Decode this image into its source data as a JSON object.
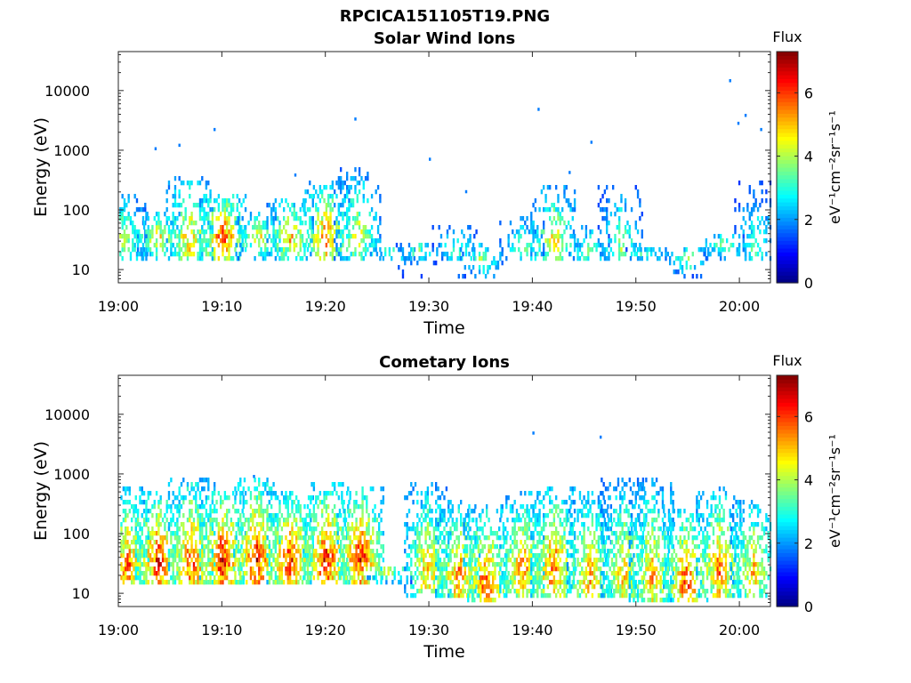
{
  "figure": {
    "title": "RPCICA151105T19.PNG"
  },
  "colors": {
    "colormap": [
      "#00007f",
      "#0000ff",
      "#007fff",
      "#00ffff",
      "#7fff7f",
      "#ffff00",
      "#ff7f00",
      "#ff0000",
      "#7f0000"
    ]
  },
  "chart_data": [
    {
      "type": "heatmap",
      "title": "Solar Wind Ions",
      "xlabel": "Time",
      "ylabel": "Energy (eV)",
      "x_ticks": [
        "19:00",
        "19:10",
        "19:20",
        "19:30",
        "19:40",
        "19:50",
        "20:00"
      ],
      "y_ticks": [
        "10",
        "100",
        "1000",
        "10000"
      ],
      "y_scale": "log",
      "xlim": [
        "19:00",
        "20:03"
      ],
      "ylim": [
        6,
        45000
      ],
      "colorbar": {
        "title": "Flux",
        "label": "eV⁻¹cm⁻²sr⁻¹s⁻¹",
        "ticks": [
          "0",
          "2",
          "4",
          "6"
        ],
        "range": [
          0,
          7.3
        ]
      },
      "bursts": [
        {
          "t": 0.5,
          "lo": 15,
          "hi": 200,
          "peak": 4.5,
          "core": 35,
          "density": 0.7
        },
        {
          "t": 3.8,
          "lo": 15,
          "hi": 90,
          "peak": 5.2,
          "core": 35,
          "density": 0.6
        },
        {
          "t": 6.8,
          "lo": 15,
          "hi": 400,
          "peak": 5.5,
          "core": 35,
          "density": 0.55
        },
        {
          "t": 10.0,
          "lo": 15,
          "hi": 200,
          "peak": 6.5,
          "core": 35,
          "density": 0.7
        },
        {
          "t": 13.5,
          "lo": 15,
          "hi": 90,
          "peak": 5.0,
          "core": 35,
          "density": 0.6
        },
        {
          "t": 16.5,
          "lo": 15,
          "hi": 150,
          "peak": 5.5,
          "core": 35,
          "density": 0.65
        },
        {
          "t": 20.0,
          "lo": 15,
          "hi": 300,
          "peak": 6.0,
          "core": 35,
          "density": 0.65
        },
        {
          "t": 23.0,
          "lo": 15,
          "hi": 500,
          "peak": 4.8,
          "core": 40,
          "density": 0.55
        },
        {
          "t": 26.5,
          "lo": 15,
          "hi": 25,
          "peak": 4.0,
          "core": 20,
          "density": 0.35
        },
        {
          "t": 29.0,
          "lo": 7,
          "hi": 30,
          "peak": 4.0,
          "core": 20,
          "density": 0.4
        },
        {
          "t": 32.5,
          "lo": 15,
          "hi": 60,
          "peak": 3.8,
          "core": 20,
          "density": 0.35
        },
        {
          "t": 35.0,
          "lo": 7,
          "hi": 30,
          "peak": 4.2,
          "core": 15,
          "density": 0.4
        },
        {
          "t": 39.0,
          "lo": 15,
          "hi": 80,
          "peak": 4.0,
          "core": 25,
          "density": 0.4
        },
        {
          "t": 42.0,
          "lo": 15,
          "hi": 250,
          "peak": 5.2,
          "core": 30,
          "density": 0.55
        },
        {
          "t": 45.5,
          "lo": 15,
          "hi": 60,
          "peak": 4.0,
          "core": 20,
          "density": 0.4
        },
        {
          "t": 48.5,
          "lo": 15,
          "hi": 250,
          "peak": 4.2,
          "core": 25,
          "density": 0.45
        },
        {
          "t": 51.0,
          "lo": 15,
          "hi": 25,
          "peak": 3.8,
          "core": 18,
          "density": 0.35
        },
        {
          "t": 55.0,
          "lo": 7,
          "hi": 25,
          "peak": 4.2,
          "core": 15,
          "density": 0.4
        },
        {
          "t": 58.5,
          "lo": 15,
          "hi": 40,
          "peak": 4.2,
          "core": 25,
          "density": 0.5
        },
        {
          "t": 61.5,
          "lo": 15,
          "hi": 300,
          "peak": 3.8,
          "core": 20,
          "density": 0.4
        }
      ],
      "specks": [
        {
          "t": 3.5,
          "e": 1050
        },
        {
          "t": 5.8,
          "e": 1200
        },
        {
          "t": 9.2,
          "e": 2200
        },
        {
          "t": 22.8,
          "e": 3300
        },
        {
          "t": 30.0,
          "e": 700
        },
        {
          "t": 40.5,
          "e": 4800
        },
        {
          "t": 45.6,
          "e": 1350
        },
        {
          "t": 59.0,
          "e": 14500
        },
        {
          "t": 60.5,
          "e": 3800
        },
        {
          "t": 62.0,
          "e": 2200
        },
        {
          "t": 59.8,
          "e": 2800
        },
        {
          "t": 33.5,
          "e": 200
        },
        {
          "t": 17.0,
          "e": 380
        },
        {
          "t": 43.5,
          "e": 420
        }
      ]
    },
    {
      "type": "heatmap",
      "title": "Cometary Ions",
      "xlabel": "Time",
      "ylabel": "Energy (eV)",
      "x_ticks": [
        "19:00",
        "19:10",
        "19:20",
        "19:30",
        "19:40",
        "19:50",
        "20:00"
      ],
      "y_ticks": [
        "10",
        "100",
        "1000",
        "10000"
      ],
      "y_scale": "log",
      "xlim": [
        "19:00",
        "20:03"
      ],
      "ylim": [
        6,
        45000
      ],
      "colorbar": {
        "title": "Flux",
        "label": "eV⁻¹cm⁻²sr⁻¹s⁻¹",
        "ticks": [
          "0",
          "2",
          "4",
          "6"
        ],
        "range": [
          0,
          7.3
        ]
      },
      "bursts": [
        {
          "t": 0.8,
          "lo": 15,
          "hi": 600,
          "peak": 6.3,
          "core": 30,
          "density": 0.8
        },
        {
          "t": 3.8,
          "lo": 15,
          "hi": 500,
          "peak": 6.8,
          "core": 35,
          "density": 0.8
        },
        {
          "t": 7.0,
          "lo": 15,
          "hi": 900,
          "peak": 6.5,
          "core": 30,
          "density": 0.75
        },
        {
          "t": 10.0,
          "lo": 15,
          "hi": 600,
          "peak": 7.0,
          "core": 35,
          "density": 0.8
        },
        {
          "t": 13.3,
          "lo": 15,
          "hi": 900,
          "peak": 6.8,
          "core": 35,
          "density": 0.75
        },
        {
          "t": 16.5,
          "lo": 15,
          "hi": 500,
          "peak": 6.8,
          "core": 35,
          "density": 0.8
        },
        {
          "t": 20.0,
          "lo": 15,
          "hi": 700,
          "peak": 7.0,
          "core": 35,
          "density": 0.8
        },
        {
          "t": 23.3,
          "lo": 15,
          "hi": 600,
          "peak": 6.8,
          "core": 40,
          "density": 0.8
        },
        {
          "t": 26.0,
          "lo": 15,
          "hi": 30,
          "peak": 5.0,
          "core": 25,
          "density": 0.55
        },
        {
          "t": 29.8,
          "lo": 8,
          "hi": 700,
          "peak": 5.5,
          "core": 25,
          "density": 0.75
        },
        {
          "t": 32.8,
          "lo": 8,
          "hi": 400,
          "peak": 6.0,
          "core": 20,
          "density": 0.7
        },
        {
          "t": 35.5,
          "lo": 7,
          "hi": 300,
          "peak": 6.5,
          "core": 15,
          "density": 0.7
        },
        {
          "t": 39.0,
          "lo": 8,
          "hi": 500,
          "peak": 6.0,
          "core": 25,
          "density": 0.75
        },
        {
          "t": 42.0,
          "lo": 8,
          "hi": 600,
          "peak": 6.3,
          "core": 25,
          "density": 0.75
        },
        {
          "t": 45.5,
          "lo": 8,
          "hi": 500,
          "peak": 5.8,
          "core": 20,
          "density": 0.7
        },
        {
          "t": 48.8,
          "lo": 8,
          "hi": 900,
          "peak": 5.5,
          "core": 20,
          "density": 0.75
        },
        {
          "t": 51.5,
          "lo": 7,
          "hi": 900,
          "peak": 5.5,
          "core": 20,
          "density": 0.75
        },
        {
          "t": 54.8,
          "lo": 7,
          "hi": 300,
          "peak": 6.5,
          "core": 15,
          "density": 0.7
        },
        {
          "t": 58.0,
          "lo": 8,
          "hi": 600,
          "peak": 6.0,
          "core": 25,
          "density": 0.7
        },
        {
          "t": 61.3,
          "lo": 8,
          "hi": 400,
          "peak": 5.5,
          "core": 25,
          "density": 0.65
        }
      ],
      "specks": [
        {
          "t": 40.0,
          "e": 4800
        },
        {
          "t": 46.5,
          "e": 4100
        },
        {
          "t": 13.0,
          "e": 900
        }
      ]
    }
  ]
}
